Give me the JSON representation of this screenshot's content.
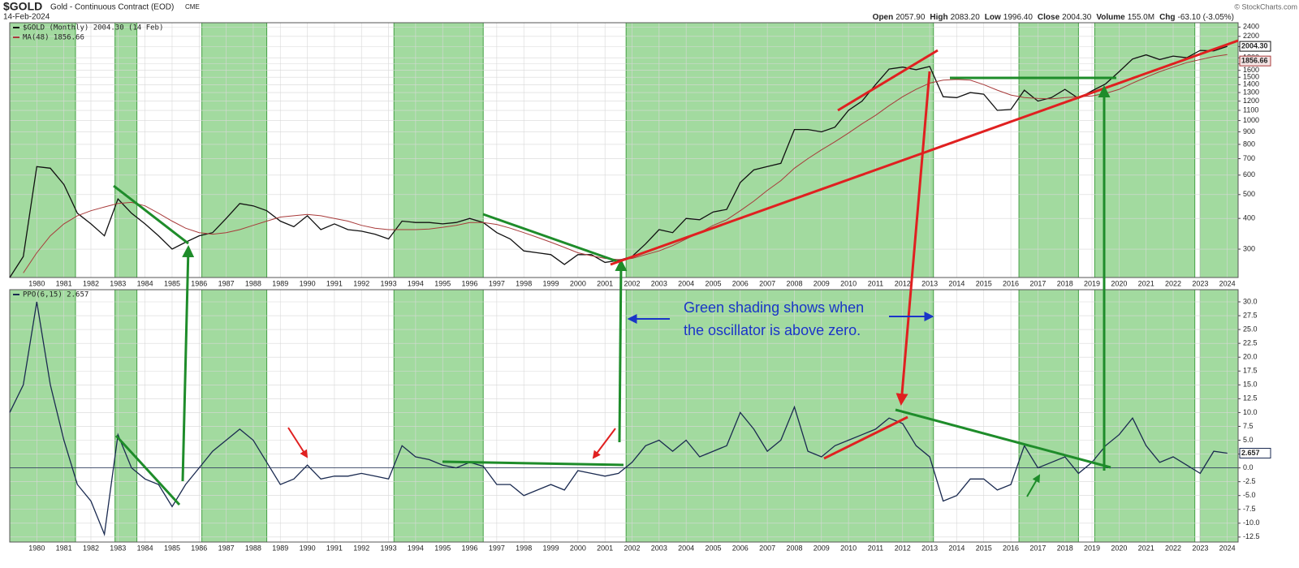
{
  "header": {
    "symbol": "$GOLD",
    "name": "Gold - Continuous Contract (EOD)",
    "exchange": "CME",
    "date": "14-Feb-2024",
    "quote": [
      {
        "label": "Open",
        "value": "2057.90"
      },
      {
        "label": "High",
        "value": "2083.20"
      },
      {
        "label": "Low",
        "value": "1996.40"
      },
      {
        "label": "Close",
        "value": "2004.30"
      },
      {
        "label": "Volume",
        "value": "155.0M"
      },
      {
        "label": "Chg",
        "value": "-63.10 (-3.05%)"
      }
    ],
    "credit": "© StockCharts.com"
  },
  "annotation": [
    "Green shading shows when",
    "the oscillator is above zero."
  ],
  "chart_data": [
    {
      "type": "line",
      "log_scale": true,
      "grid": true,
      "xlim": [
        1979.0,
        2024.4
      ],
      "xticks": [
        1980,
        1981,
        1982,
        1983,
        1984,
        1985,
        1986,
        1987,
        1988,
        1989,
        1990,
        1991,
        1992,
        1993,
        1994,
        1995,
        1996,
        1997,
        1998,
        1999,
        2000,
        2001,
        2002,
        2003,
        2004,
        2005,
        2006,
        2007,
        2008,
        2009,
        2010,
        2011,
        2012,
        2013,
        2014,
        2015,
        2016,
        2017,
        2018,
        2019,
        2020,
        2021,
        2022,
        2023,
        2024
      ],
      "ylim": [
        230,
        2500
      ],
      "yticks": [
        300,
        400,
        500,
        600,
        700,
        800,
        900,
        1000,
        1100,
        1200,
        1300,
        1400,
        1500,
        1600,
        1700,
        1800,
        2000,
        2200,
        2400
      ],
      "shading": [
        [
          1979.0,
          1981.43
        ],
        [
          1982.89,
          1983.7
        ],
        [
          1986.1,
          1988.5
        ],
        [
          1993.2,
          1996.5
        ],
        [
          2001.78,
          2013.14
        ],
        [
          2016.3,
          2018.5
        ],
        [
          2019.1,
          2022.8
        ],
        [
          2023.0,
          2024.4
        ]
      ],
      "shading_color": "#9ed99a",
      "x": [
        1979.0,
        1979.5,
        1980.0,
        1980.5,
        1981.0,
        1981.5,
        1982.0,
        1982.5,
        1983.0,
        1983.5,
        1984.0,
        1984.5,
        1985.0,
        1985.5,
        1986.0,
        1986.5,
        1987.0,
        1987.5,
        1988.0,
        1988.5,
        1989.0,
        1989.5,
        1990.0,
        1990.5,
        1991.0,
        1991.5,
        1992.0,
        1992.5,
        1993.0,
        1993.5,
        1994.0,
        1994.5,
        1995.0,
        1995.5,
        1996.0,
        1996.5,
        1997.0,
        1997.5,
        1998.0,
        1998.5,
        1999.0,
        1999.5,
        2000.0,
        2000.5,
        2001.0,
        2001.5,
        2002.0,
        2002.5,
        2003.0,
        2003.5,
        2004.0,
        2004.5,
        2005.0,
        2005.5,
        2006.0,
        2006.5,
        2007.0,
        2007.5,
        2008.0,
        2008.5,
        2009.0,
        2009.5,
        2010.0,
        2010.5,
        2011.0,
        2011.5,
        2012.0,
        2012.5,
        2013.0,
        2013.5,
        2014.0,
        2014.5,
        2015.0,
        2015.5,
        2016.0,
        2016.5,
        2017.0,
        2017.5,
        2018.0,
        2018.5,
        2019.0,
        2019.5,
        2020.0,
        2020.5,
        2021.0,
        2021.5,
        2022.0,
        2022.5,
        2023.0,
        2023.5,
        2024.0
      ],
      "series": [
        {
          "name": "$GOLD (Monthly) 2004.30 (14 Feb)",
          "color": "#111111",
          "last_label": "2004.30",
          "values": [
            230,
            280,
            650,
            640,
            550,
            420,
            380,
            340,
            480,
            420,
            380,
            340,
            300,
            320,
            340,
            350,
            400,
            460,
            450,
            430,
            390,
            370,
            410,
            360,
            380,
            360,
            355,
            345,
            330,
            390,
            385,
            385,
            380,
            385,
            400,
            385,
            350,
            330,
            295,
            290,
            285,
            260,
            285,
            285,
            265,
            270,
            280,
            315,
            360,
            350,
            400,
            395,
            425,
            435,
            560,
            630,
            650,
            670,
            920,
            920,
            900,
            940,
            1100,
            1200,
            1400,
            1620,
            1650,
            1610,
            1660,
            1250,
            1240,
            1300,
            1280,
            1100,
            1110,
            1330,
            1200,
            1240,
            1340,
            1230,
            1320,
            1410,
            1580,
            1780,
            1850,
            1770,
            1830,
            1800,
            1930,
            1920,
            2004.3
          ]
        },
        {
          "name": "MA(48) 1856.66",
          "color": "#a83a3a",
          "last_label": "1856.66",
          "values": [
            null,
            240,
            290,
            340,
            380,
            410,
            430,
            445,
            460,
            465,
            450,
            420,
            390,
            365,
            350,
            345,
            350,
            360,
            375,
            390,
            405,
            410,
            415,
            410,
            400,
            390,
            375,
            365,
            360,
            360,
            360,
            362,
            368,
            375,
            385,
            385,
            378,
            365,
            350,
            335,
            320,
            305,
            290,
            282,
            275,
            272,
            275,
            285,
            295,
            310,
            330,
            350,
            375,
            395,
            430,
            470,
            520,
            570,
            640,
            700,
            760,
            820,
            890,
            970,
            1050,
            1150,
            1250,
            1340,
            1420,
            1460,
            1470,
            1460,
            1400,
            1330,
            1270,
            1240,
            1230,
            1225,
            1240,
            1250,
            1260,
            1290,
            1340,
            1420,
            1500,
            1580,
            1650,
            1720,
            1770,
            1820,
            1856.66
          ]
        }
      ]
    },
    {
      "type": "line",
      "grid": true,
      "zero_line": true,
      "xlim": [
        1979.0,
        2024.4
      ],
      "xticks": [
        1980,
        1981,
        1982,
        1983,
        1984,
        1985,
        1986,
        1987,
        1988,
        1989,
        1990,
        1991,
        1992,
        1993,
        1994,
        1995,
        1996,
        1997,
        1998,
        1999,
        2000,
        2001,
        2002,
        2003,
        2004,
        2005,
        2006,
        2007,
        2008,
        2009,
        2010,
        2011,
        2012,
        2013,
        2014,
        2015,
        2016,
        2017,
        2018,
        2019,
        2020,
        2021,
        2022,
        2023,
        2024
      ],
      "ylim": [
        -13.4,
        32.2
      ],
      "yticks": [
        {
          "value": 30,
          "label": "30.0"
        },
        27.5,
        {
          "value": 25,
          "label": "25.0"
        },
        22.5,
        {
          "value": 20,
          "label": "20.0"
        },
        17.5,
        {
          "value": 15,
          "label": "15.0"
        },
        12.5,
        {
          "value": 10,
          "label": "10.0"
        },
        7.5,
        {
          "value": 5,
          "label": "5.0"
        },
        2.5,
        {
          "value": 0,
          "label": "0.0"
        },
        -2.5,
        {
          "value": -5,
          "label": "-5.0"
        },
        -7.5,
        {
          "value": -10,
          "label": "-10.0"
        },
        -12.5
      ],
      "x": [
        1979.0,
        1979.5,
        1980.0,
        1980.5,
        1981.0,
        1981.5,
        1982.0,
        1982.5,
        1983.0,
        1983.5,
        1984.0,
        1984.5,
        1985.0,
        1985.5,
        1986.0,
        1986.5,
        1987.0,
        1987.5,
        1988.0,
        1988.5,
        1989.0,
        1989.5,
        1990.0,
        1990.5,
        1991.0,
        1991.5,
        1992.0,
        1992.5,
        1993.0,
        1993.5,
        1994.0,
        1994.5,
        1995.0,
        1995.5,
        1996.0,
        1996.5,
        1997.0,
        1997.5,
        1998.0,
        1998.5,
        1999.0,
        1999.5,
        2000.0,
        2000.5,
        2001.0,
        2001.5,
        2002.0,
        2002.5,
        2003.0,
        2003.5,
        2004.0,
        2004.5,
        2005.0,
        2005.5,
        2006.0,
        2006.5,
        2007.0,
        2007.5,
        2008.0,
        2008.5,
        2009.0,
        2009.5,
        2010.0,
        2010.5,
        2011.0,
        2011.5,
        2012.0,
        2012.5,
        2013.0,
        2013.5,
        2014.0,
        2014.5,
        2015.0,
        2015.5,
        2016.0,
        2016.5,
        2017.0,
        2017.5,
        2018.0,
        2018.5,
        2019.0,
        2019.5,
        2020.0,
        2020.5,
        2021.0,
        2021.5,
        2022.0,
        2022.5,
        2023.0,
        2023.5,
        2024.0
      ],
      "series": [
        {
          "name": "PPO(6,15) 2.657",
          "color": "#1a2a50",
          "last_label": "2.657",
          "values": [
            10,
            15,
            30,
            15,
            5,
            -3,
            -6,
            -12,
            6,
            0,
            -2,
            -3,
            -7,
            -3,
            0,
            3,
            5,
            7,
            5,
            1,
            -3,
            -2,
            0.5,
            -2,
            -1.5,
            -1.5,
            -1,
            -1.5,
            -2,
            4,
            2,
            1.5,
            0.5,
            0,
            1,
            0.3,
            -3,
            -3,
            -5,
            -4,
            -3,
            -4,
            -0.5,
            -1,
            -1.5,
            -1,
            1,
            4,
            5,
            3,
            5,
            2,
            3,
            4,
            10,
            7,
            3,
            5,
            11,
            3,
            2,
            4,
            5,
            6,
            7,
            9,
            8,
            4,
            2,
            -6,
            -5,
            -2,
            -2,
            -4,
            -3,
            4,
            0,
            1,
            2,
            -1,
            1,
            4,
            6,
            9,
            4,
            1,
            2,
            0.5,
            -1,
            3,
            2.657
          ]
        }
      ]
    }
  ]
}
